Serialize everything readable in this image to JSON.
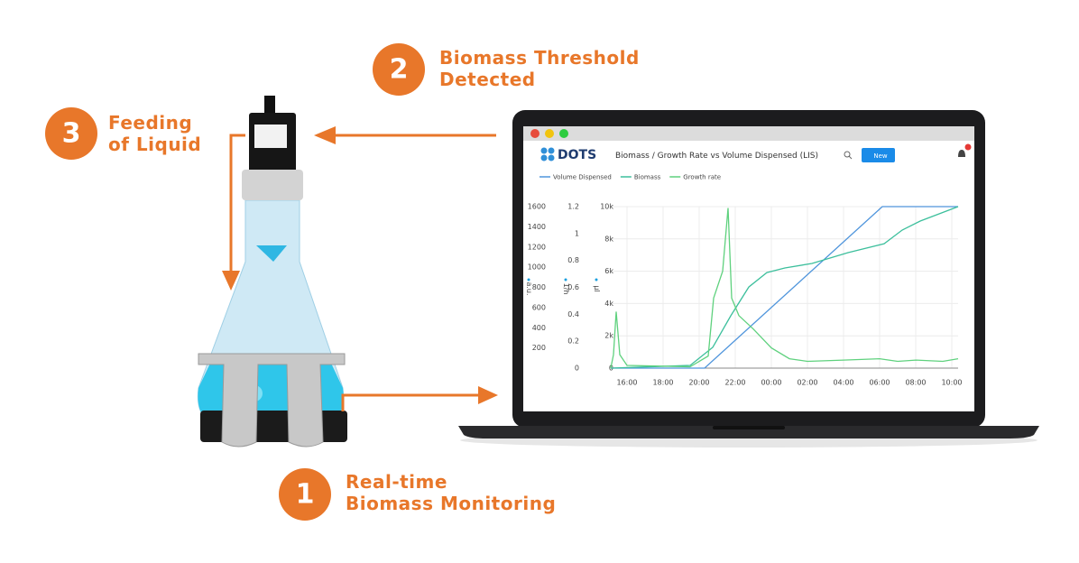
{
  "steps": [
    {
      "number": "1",
      "lines": [
        "Real-time",
        "Biomass Monitoring"
      ]
    },
    {
      "number": "2",
      "lines": [
        "Biomass Threshold",
        "Detected"
      ]
    },
    {
      "number": "3",
      "lines": [
        "Feeding",
        "of Liquid"
      ]
    }
  ],
  "app": {
    "brand": "DOTS",
    "title": "Biomass / Growth Rate vs Volume Dispensed (LIS)",
    "button": "New"
  },
  "chart_data": {
    "type": "line",
    "xlim": [
      15.1,
      34.35
    ],
    "xticks": [
      {
        "value": 16,
        "label": "16:00"
      },
      {
        "value": 18,
        "label": "18:00"
      },
      {
        "value": 20,
        "label": "20:00"
      },
      {
        "value": 22,
        "label": "22:00"
      },
      {
        "value": 24,
        "label": "00:00"
      },
      {
        "value": 26,
        "label": "02:00"
      },
      {
        "value": 28,
        "label": "04:00"
      },
      {
        "value": 30,
        "label": "06:00"
      },
      {
        "value": 32,
        "label": "08:00"
      },
      {
        "value": 34,
        "label": "10:00"
      }
    ],
    "ylabel": "µl",
    "ylim": [
      0,
      10000
    ],
    "yticks": [
      0,
      {
        "value": 2000,
        "label": "2k"
      },
      {
        "value": 4000,
        "label": "4k"
      },
      {
        "value": 6000,
        "label": "6k"
      },
      {
        "value": 8000,
        "label": "8k"
      },
      {
        "value": 10000,
        "label": "10k"
      }
    ],
    "y2label": "1/h",
    "y2lim": [
      0,
      1.2
    ],
    "y2ticks": [
      0,
      0.2,
      0.4,
      0.6,
      0.8,
      1,
      1.2
    ],
    "y3label": "a.u.",
    "y3lim": [
      0,
      1600
    ],
    "y3ticks": [
      200,
      400,
      600,
      800,
      1000,
      1200,
      1400,
      1600
    ],
    "grid": true,
    "series": [
      {
        "name": "Volume Dispensed",
        "color": "#4f95dc",
        "axis": "y",
        "x": [
          15.1,
          20.3,
          30.15,
          34.35
        ],
        "values": [
          0,
          0,
          10000,
          10000
        ]
      },
      {
        "name": "Biomass",
        "color": "#3cbf9c",
        "axis": "y3",
        "x": [
          15.1,
          19.5,
          20.75,
          21.75,
          22.75,
          23.75,
          24.75,
          26.25,
          28.25,
          30.25,
          31.25,
          32.25,
          34.35
        ],
        "values": [
          0,
          27,
          206,
          518,
          804,
          947,
          992,
          1037,
          1144,
          1233,
          1368,
          1457,
          1600
        ]
      },
      {
        "name": "Growth rate",
        "color": "#5fd17e",
        "axis": "y2",
        "x": [
          15.1,
          15.25,
          15.4,
          15.6,
          16,
          19.5,
          20.5,
          20.8,
          21.3,
          21.6,
          21.8,
          22.2,
          23,
          24,
          25,
          26,
          28,
          30,
          31,
          32,
          33.5,
          34.35
        ],
        "values": [
          0,
          0.1,
          0.42,
          0.1,
          0.02,
          0.01,
          0.09,
          0.52,
          0.72,
          1.19,
          0.52,
          0.39,
          0.29,
          0.15,
          0.07,
          0.05,
          0.06,
          0.07,
          0.05,
          0.06,
          0.05,
          0.07
        ]
      }
    ]
  }
}
